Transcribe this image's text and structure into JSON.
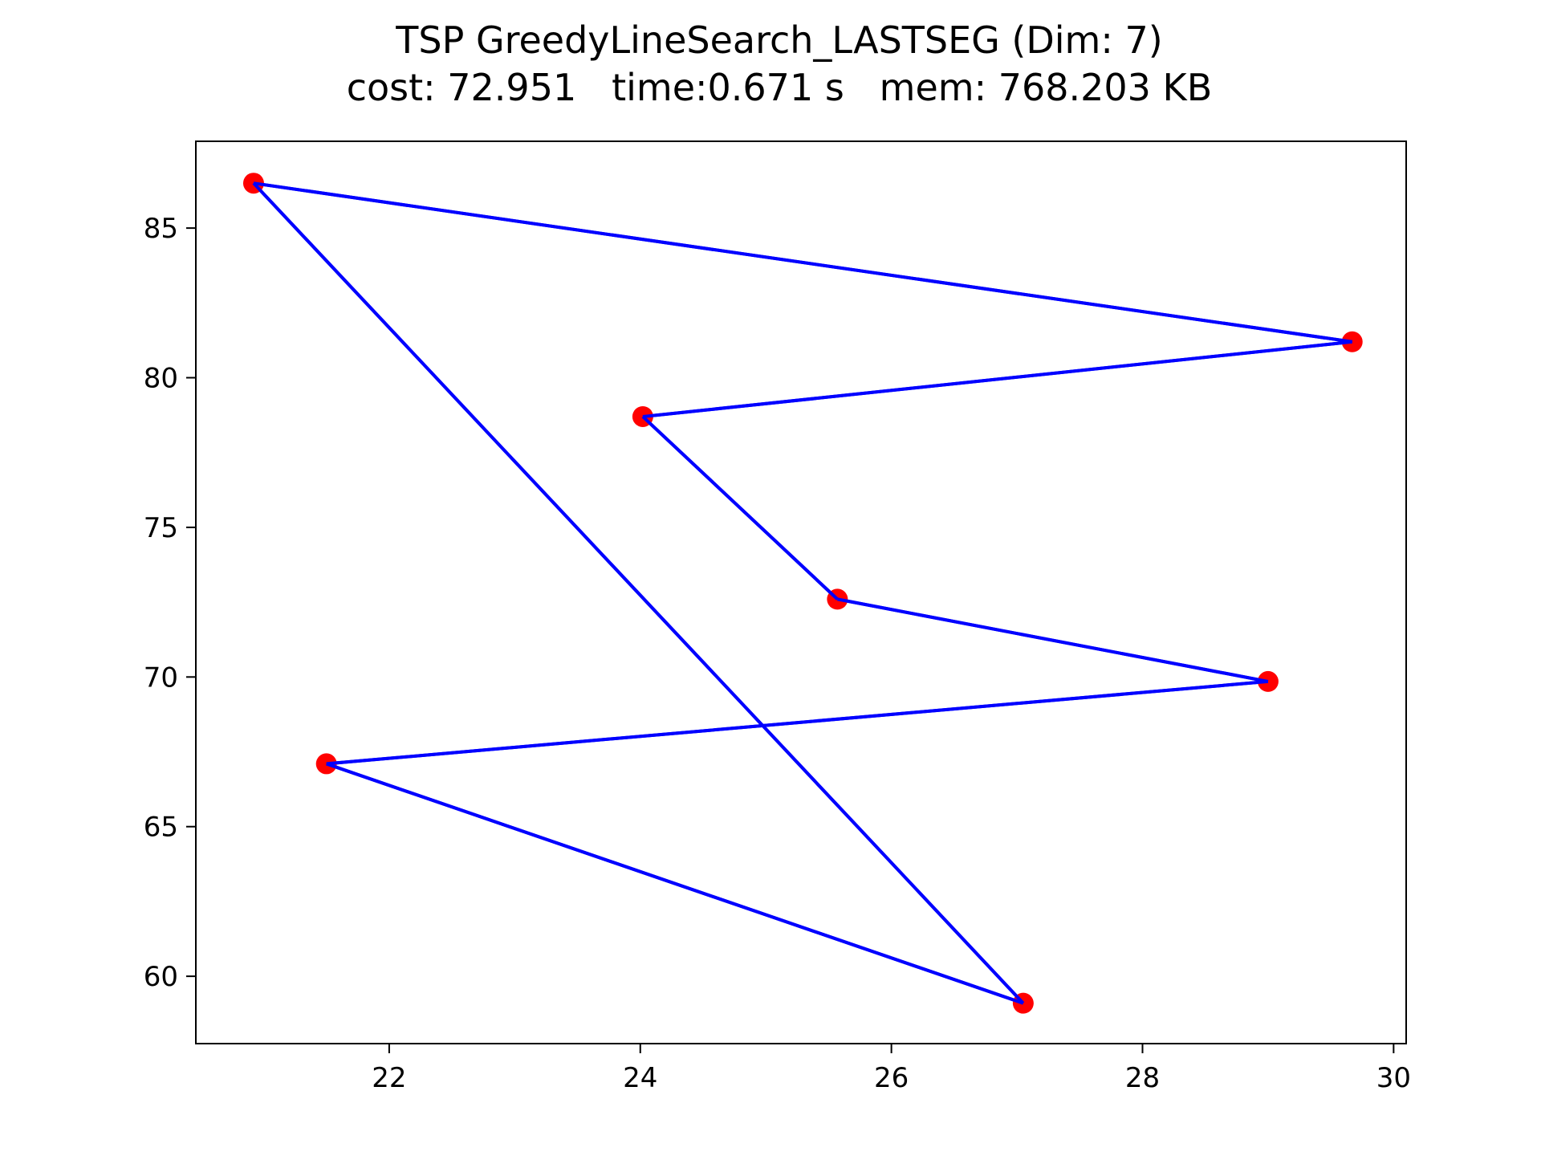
{
  "chart_data": {
    "type": "line",
    "title": "TSP GreedyLineSearch_LASTSEG (Dim: 7)",
    "subtitle": "cost: 72.951   time:0.671 s   mem: 768.203 KB",
    "xlabel": "",
    "ylabel": "",
    "xlim": [
      20.46,
      30.1
    ],
    "ylim": [
      57.75,
      87.9
    ],
    "xticks": [
      22,
      24,
      26,
      28,
      30
    ],
    "yticks": [
      60,
      65,
      70,
      75,
      80,
      85
    ],
    "grid": false,
    "line_color": "#0000ff",
    "marker_color": "#ff0000",
    "route": [
      {
        "x": 20.92,
        "y": 86.5
      },
      {
        "x": 29.67,
        "y": 81.2
      },
      {
        "x": 24.02,
        "y": 78.7
      },
      {
        "x": 25.57,
        "y": 72.6
      },
      {
        "x": 29.0,
        "y": 69.85
      },
      {
        "x": 21.5,
        "y": 67.1
      },
      {
        "x": 27.05,
        "y": 59.1
      },
      {
        "x": 20.92,
        "y": 86.5
      }
    ]
  }
}
